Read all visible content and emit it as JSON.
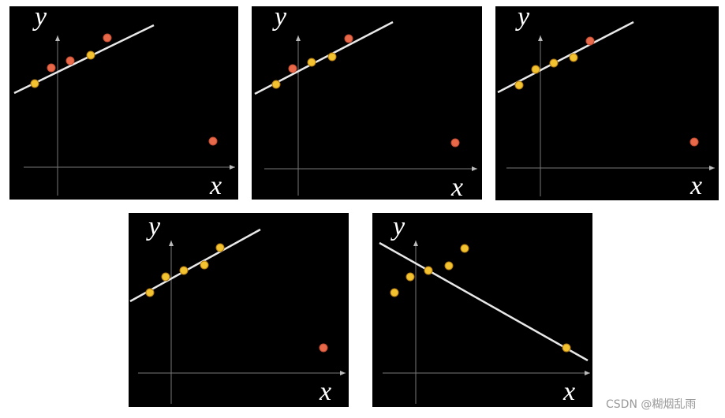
{
  "panels": [
    {
      "y_label": "y",
      "x_label": "x"
    },
    {
      "y_label": "y",
      "x_label": "x"
    },
    {
      "y_label": "y",
      "x_label": "x"
    },
    {
      "y_label": "y",
      "x_label": "x"
    },
    {
      "y_label": "y",
      "x_label": "x"
    }
  ],
  "watermark": "CSDN @糊烟乱雨"
}
